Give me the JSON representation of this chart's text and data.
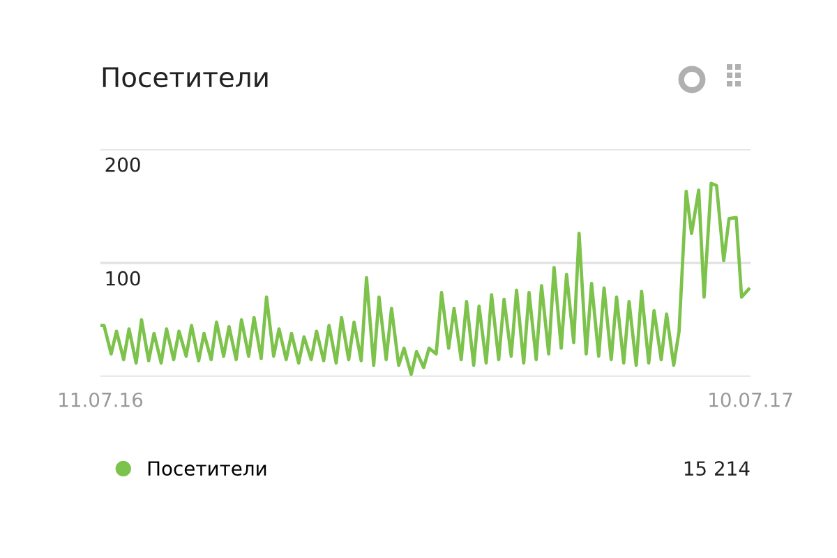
{
  "chart_data": {
    "type": "line",
    "title": "Посетители",
    "x": [
      "2016-07-11",
      "2016-07-13",
      "2016-07-17",
      "2016-07-20",
      "2016-07-24",
      "2016-07-27",
      "2016-07-31",
      "2016-08-03",
      "2016-08-07",
      "2016-08-10",
      "2016-08-14",
      "2016-08-17",
      "2016-08-21",
      "2016-08-24",
      "2016-08-28",
      "2016-08-31",
      "2016-09-04",
      "2016-09-07",
      "2016-09-11",
      "2016-09-14",
      "2016-09-18",
      "2016-09-21",
      "2016-09-25",
      "2016-09-28",
      "2016-10-02",
      "2016-10-05",
      "2016-10-09",
      "2016-10-12",
      "2016-10-16",
      "2016-10-19",
      "2016-10-23",
      "2016-10-26",
      "2016-10-30",
      "2016-11-02",
      "2016-11-06",
      "2016-11-09",
      "2016-11-13",
      "2016-11-16",
      "2016-11-20",
      "2016-11-23",
      "2016-11-27",
      "2016-11-30",
      "2016-12-04",
      "2016-12-07",
      "2016-12-11",
      "2016-12-14",
      "2016-12-18",
      "2016-12-21",
      "2016-12-25",
      "2016-12-28",
      "2017-01-01",
      "2017-01-04",
      "2017-01-08",
      "2017-01-11",
      "2017-01-15",
      "2017-01-18",
      "2017-01-22",
      "2017-01-25",
      "2017-01-29",
      "2017-02-01",
      "2017-02-05",
      "2017-02-08",
      "2017-02-12",
      "2017-02-15",
      "2017-02-19",
      "2017-02-22",
      "2017-02-26",
      "2017-03-01",
      "2017-03-05",
      "2017-03-08",
      "2017-03-12",
      "2017-03-15",
      "2017-03-19",
      "2017-03-22",
      "2017-03-26",
      "2017-03-29",
      "2017-04-02",
      "2017-04-05",
      "2017-04-09",
      "2017-04-12",
      "2017-04-16",
      "2017-04-19",
      "2017-04-23",
      "2017-04-26",
      "2017-04-30",
      "2017-05-03",
      "2017-05-07",
      "2017-05-10",
      "2017-05-14",
      "2017-05-17",
      "2017-05-21",
      "2017-05-24",
      "2017-05-28",
      "2017-05-31",
      "2017-06-04",
      "2017-06-07",
      "2017-06-11",
      "2017-06-14",
      "2017-06-18",
      "2017-06-21",
      "2017-06-25",
      "2017-06-28",
      "2017-07-02",
      "2017-07-05",
      "2017-07-09"
    ],
    "series": [
      {
        "name": "Посетители",
        "color": "#7dc24b",
        "values": [
          45,
          45,
          20,
          40,
          15,
          42,
          12,
          50,
          14,
          38,
          12,
          42,
          15,
          40,
          18,
          45,
          14,
          38,
          15,
          48,
          18,
          44,
          15,
          50,
          18,
          52,
          16,
          70,
          18,
          42,
          15,
          38,
          12,
          35,
          15,
          40,
          14,
          45,
          12,
          52,
          15,
          48,
          14,
          87,
          10,
          70,
          15,
          60,
          10,
          25,
          2,
          22,
          8,
          25,
          20,
          74,
          25,
          60,
          15,
          66,
          10,
          62,
          12,
          72,
          15,
          68,
          18,
          76,
          12,
          74,
          15,
          80,
          20,
          96,
          25,
          90,
          30,
          126,
          20,
          82,
          18,
          78,
          15,
          70,
          12,
          66,
          10,
          75,
          12,
          58,
          15,
          55,
          10,
          40,
          163,
          126,
          164,
          70,
          170,
          168,
          102,
          139,
          140,
          70,
          77
        ]
      }
    ],
    "xlim": [
      "2016-07-11",
      "2017-07-10"
    ],
    "xticks": [
      {
        "value": "2016-07-11",
        "label": "11.07.16"
      },
      {
        "value": "2017-07-10",
        "label": "10.07.17"
      }
    ],
    "ylim": [
      0,
      200
    ],
    "yticks": [
      {
        "value": 0,
        "label": null
      },
      100,
      200
    ],
    "grid": "y",
    "legend": "bottom",
    "marker": "none",
    "line_style": "solid",
    "annotations": [
      "15 214"
    ]
  }
}
